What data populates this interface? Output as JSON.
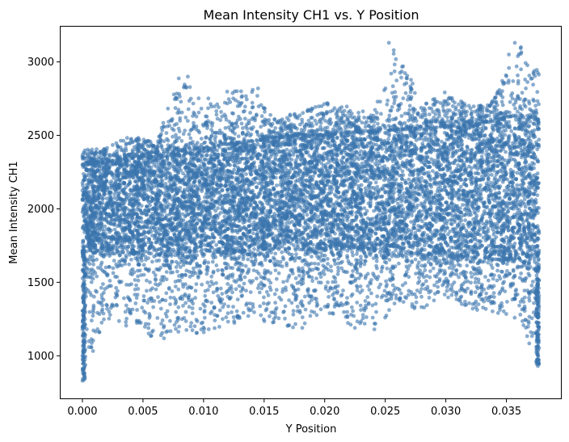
{
  "chart_data": {
    "type": "scatter",
    "title": "Mean Intensity CH1 vs. Y Position",
    "xlabel": "Y Position",
    "ylabel": "Mean Intensity CH1",
    "xlim": [
      -0.0018,
      0.0395
    ],
    "ylim": [
      710,
      3240
    ],
    "xticks": [
      0.0,
      0.005,
      0.01,
      0.015,
      0.02,
      0.025,
      0.03,
      0.035
    ],
    "xtick_labels": [
      "0.000",
      "0.005",
      "0.010",
      "0.015",
      "0.020",
      "0.025",
      "0.030",
      "0.035"
    ],
    "yticks": [
      1000,
      1500,
      2000,
      2500,
      3000
    ],
    "ytick_labels": [
      "1000",
      "1500",
      "2000",
      "2500",
      "3000"
    ],
    "grid": false,
    "legend": false,
    "point_color": "#3a74ae",
    "point_alpha": 0.6,
    "band_profile": {
      "x": [
        0.0,
        0.002,
        0.004,
        0.006,
        0.008,
        0.01,
        0.012,
        0.014,
        0.016,
        0.018,
        0.02,
        0.022,
        0.024,
        0.026,
        0.028,
        0.03,
        0.032,
        0.034,
        0.036,
        0.0377
      ],
      "core_low": [
        1700,
        1720,
        1700,
        1680,
        1700,
        1720,
        1700,
        1720,
        1740,
        1740,
        1720,
        1740,
        1720,
        1700,
        1700,
        1680,
        1680,
        1660,
        1660,
        1700
      ],
      "core_high": [
        2300,
        2320,
        2340,
        2380,
        2400,
        2420,
        2440,
        2460,
        2480,
        2500,
        2500,
        2520,
        2520,
        2540,
        2540,
        2560,
        2560,
        2600,
        2640,
        2600
      ],
      "low_extreme": [
        830,
        1250,
        1180,
        1100,
        1150,
        1150,
        1200,
        1250,
        1200,
        1180,
        1300,
        1200,
        1150,
        1350,
        1300,
        1400,
        1320,
        1280,
        1250,
        930
      ],
      "high_extreme": [
        2400,
        2420,
        2500,
        2450,
        2900,
        2750,
        2800,
        2820,
        2600,
        2680,
        2720,
        2720,
        2650,
        3130,
        2700,
        2800,
        2700,
        2750,
        3130,
        2950
      ]
    },
    "notable_points": [
      {
        "x": 0.0,
        "y": 830
      },
      {
        "x": 0.0,
        "y": 1000
      },
      {
        "x": 0.0087,
        "y": 2900
      },
      {
        "x": 0.0131,
        "y": 2800
      },
      {
        "x": 0.0145,
        "y": 2820
      },
      {
        "x": 0.0253,
        "y": 3130
      },
      {
        "x": 0.0257,
        "y": 3080
      },
      {
        "x": 0.0357,
        "y": 3130
      },
      {
        "x": 0.0352,
        "y": 3050
      },
      {
        "x": 0.0376,
        "y": 930
      },
      {
        "x": 0.0376,
        "y": 1000
      }
    ]
  }
}
